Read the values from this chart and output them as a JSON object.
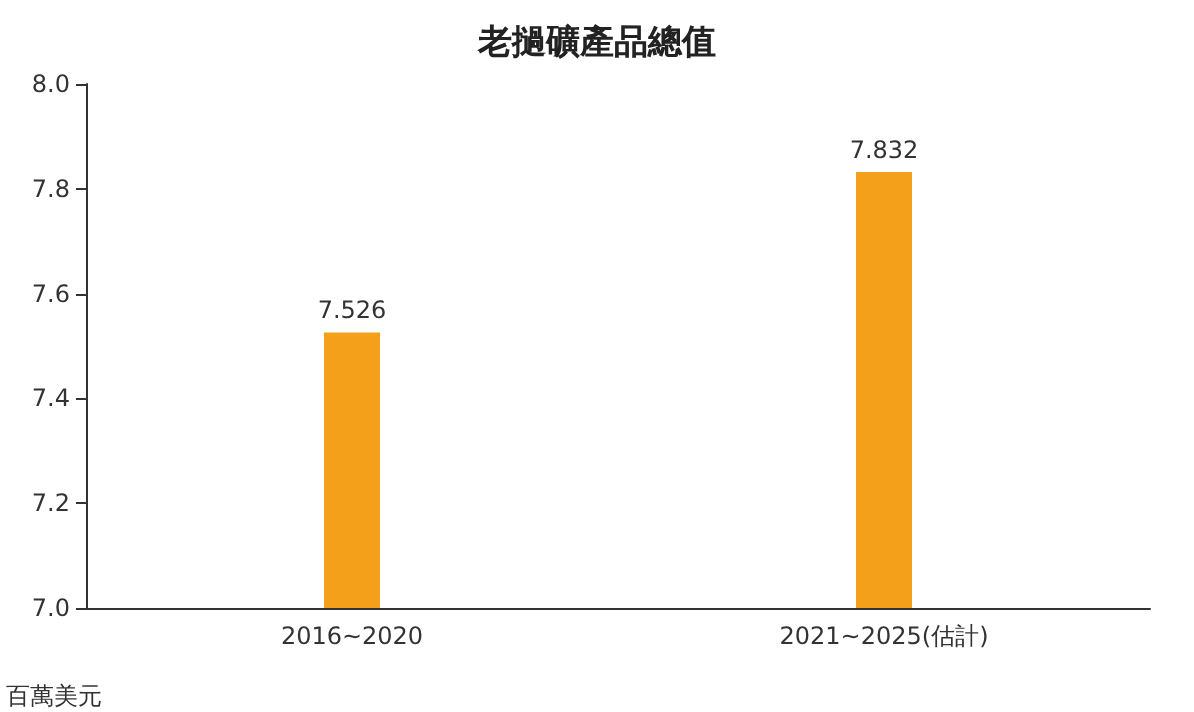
{
  "chart_data": {
    "type": "bar",
    "title": "老撾礦產品總值",
    "ylabel": "百萬美元",
    "categories": [
      "2016~2020",
      "2021~2025(估計)"
    ],
    "values": [
      7.526,
      7.832
    ],
    "color": "#f5a01a",
    "data_labels": true,
    "ylim": [
      7,
      8
    ],
    "yticks": [
      {
        "value": 7,
        "label": "7.0"
      },
      7.2,
      7.4,
      7.6,
      7.8,
      {
        "value": 8,
        "label": "8.0"
      }
    ],
    "grid": false
  }
}
